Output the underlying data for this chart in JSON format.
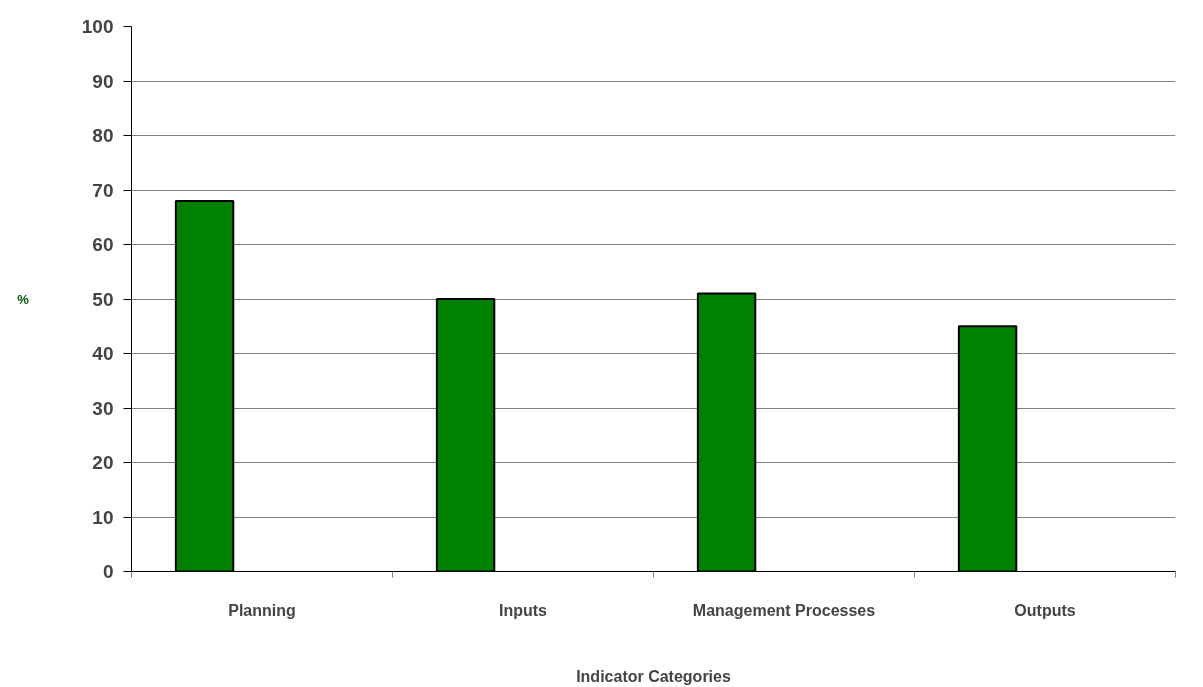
{
  "chart_data": {
    "type": "bar",
    "xlabel": "Indicator Categories",
    "ylabel": "%",
    "categories": [
      "Planning",
      "Inputs",
      "Management Processes",
      "Outputs"
    ],
    "values": [
      68,
      50,
      51,
      45
    ],
    "color": "#008000",
    "ylim": [
      0,
      100
    ],
    "yticks": [
      0,
      10,
      20,
      30,
      40,
      50,
      60,
      70,
      80,
      90,
      100
    ],
    "grid": "y"
  }
}
